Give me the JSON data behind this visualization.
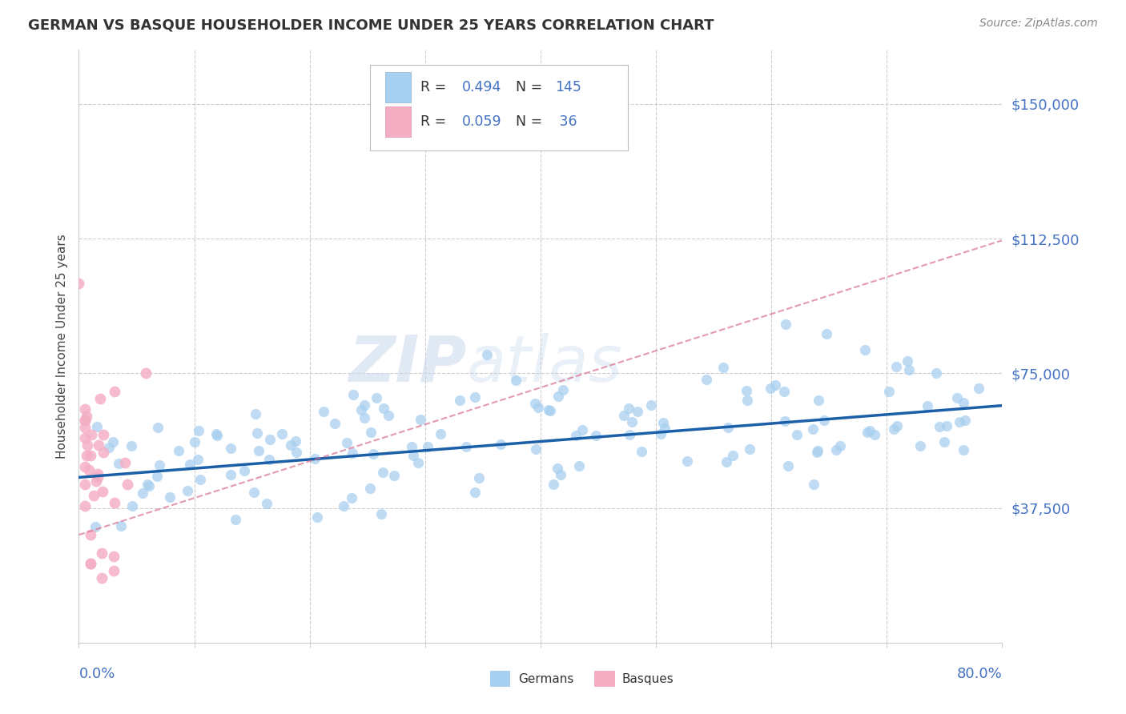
{
  "title": "GERMAN VS BASQUE HOUSEHOLDER INCOME UNDER 25 YEARS CORRELATION CHART",
  "source_text": "Source: ZipAtlas.com",
  "ylabel": "Householder Income Under 25 years",
  "xmin": 0.0,
  "xmax": 0.8,
  "ymin": 0,
  "ymax": 165000,
  "yticks": [
    37500,
    75000,
    112500,
    150000
  ],
  "ytick_labels": [
    "$37,500",
    "$75,000",
    "$112,500",
    "$150,000"
  ],
  "german_color": "#a8d0f0",
  "basque_color": "#f4aec4",
  "german_line_color": "#1a5fa8",
  "basque_line_color": "#d87090",
  "watermark_zip": "ZIP",
  "watermark_atlas": "atlas",
  "german_R": "0.494",
  "german_N": "145",
  "basque_R": "0.059",
  "basque_N": "36",
  "legend_text_color": "#333333",
  "legend_num_color": "#4472c4",
  "fig_width": 14.06,
  "fig_height": 8.92,
  "dpi": 100,
  "german_trend_x0": 0.0,
  "german_trend_y0": 46000,
  "german_trend_x1": 0.8,
  "german_trend_y1": 66000,
  "basque_trend_x0": 0.0,
  "basque_trend_y0": 30000,
  "basque_trend_x1": 0.8,
  "basque_trend_y1": 112000
}
